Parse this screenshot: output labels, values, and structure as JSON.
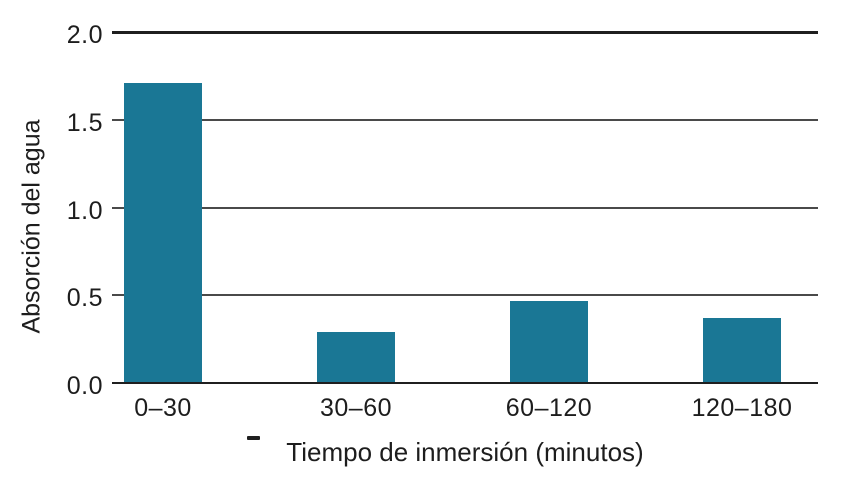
{
  "chart_data": {
    "type": "bar",
    "categories": [
      "0–30",
      "30–60",
      "60–120",
      "120–180"
    ],
    "values": [
      1.71,
      0.29,
      0.47,
      0.37
    ],
    "title": "",
    "xlabel": "Tiempo de inmersión (minutos)",
    "ylabel": "Absorción del agua",
    "ylim": [
      0,
      2.0
    ],
    "yticks": [
      0.0,
      0.5,
      1.0,
      1.5,
      2.0
    ],
    "ytick_labels": [
      "0.0",
      "0.5",
      "1.0",
      "1.5",
      "2.0"
    ],
    "bar_color": "#1a7795",
    "gridline_color": "#4a4a4a",
    "axis_line_color": "#1f1f1f",
    "text_color": "#1d1d1d",
    "grid": true,
    "legend": false,
    "annotations": [
      "-"
    ]
  }
}
